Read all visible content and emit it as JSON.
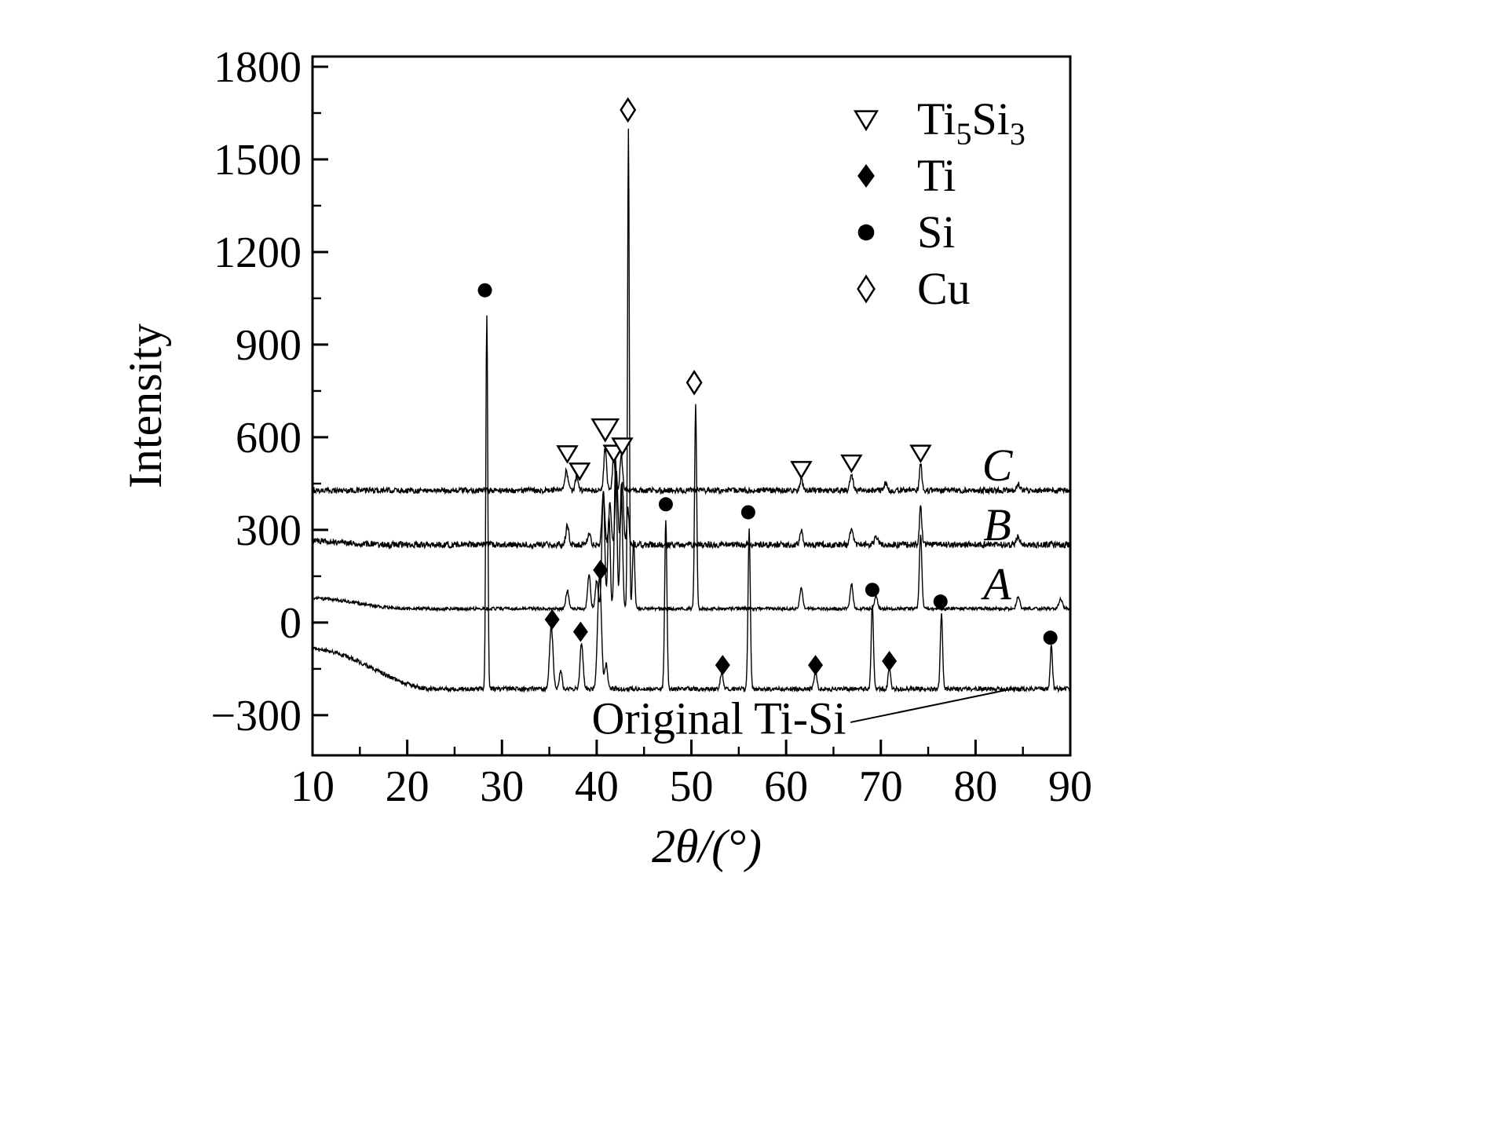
{
  "chart_data": {
    "type": "line",
    "title": "",
    "xlabel": "2θ/(°)",
    "ylabel": "Intensity",
    "xlim": [
      10,
      90
    ],
    "ylim": [
      -300,
      1800
    ],
    "x_ticks": [
      10,
      20,
      30,
      40,
      50,
      60,
      70,
      80,
      90
    ],
    "y_ticks": [
      -300,
      0,
      300,
      600,
      900,
      1200,
      1500,
      1800
    ],
    "x_minor_step": 5,
    "y_minor_step": 150,
    "grid": false,
    "line_color": "#000000",
    "background_color": "#ffffff",
    "legend": {
      "position": "top-right",
      "items": [
        {
          "symbol": "open-triangle-down",
          "phase": "Ti5Si3",
          "label": "Ti5Si3",
          "subscript_digits": true
        },
        {
          "symbol": "filled-diamond",
          "phase": "Ti",
          "label": "Ti",
          "subscript_digits": false
        },
        {
          "symbol": "filled-circle",
          "phase": "Si",
          "label": "Si",
          "subscript_digits": false
        },
        {
          "symbol": "open-diamond",
          "phase": "Cu",
          "label": "Cu",
          "subscript_digits": false
        }
      ]
    },
    "series": [
      {
        "name": "C",
        "baseline": 428,
        "noise": 9,
        "drift": {
          "amount": 0,
          "until": 20
        },
        "peaks": [
          [
            36.8,
            65,
            0.16
          ],
          [
            37.9,
            45,
            0.15
          ],
          [
            40.9,
            135,
            0.15
          ],
          [
            41.8,
            105,
            0.13
          ],
          [
            42.6,
            120,
            0.13
          ],
          [
            61.6,
            35,
            0.16
          ],
          [
            66.9,
            50,
            0.16
          ],
          [
            70.5,
            22,
            0.15
          ],
          [
            74.2,
            85,
            0.13
          ],
          [
            84.5,
            22,
            0.16
          ]
        ],
        "label": {
          "text": "C",
          "x": 82.3,
          "y": 460
        }
      },
      {
        "name": "B",
        "baseline": 252,
        "noise": 10,
        "drift": {
          "amount": 12,
          "until": 18
        },
        "peaks": [
          [
            36.9,
            60,
            0.16
          ],
          [
            39.2,
            40,
            0.15
          ],
          [
            40.7,
            170,
            0.15
          ],
          [
            41.4,
            140,
            0.13
          ],
          [
            42.1,
            230,
            0.14
          ],
          [
            42.7,
            200,
            0.13
          ],
          [
            43.3,
            120,
            0.12
          ],
          [
            61.6,
            45,
            0.16
          ],
          [
            66.9,
            55,
            0.16
          ],
          [
            69.5,
            30,
            0.15
          ],
          [
            74.2,
            120,
            0.13
          ],
          [
            84.5,
            28,
            0.16
          ]
        ],
        "label": {
          "text": "B",
          "x": 82.3,
          "y": 267
        }
      },
      {
        "name": "A",
        "baseline": 45,
        "noise": 5,
        "drift": {
          "amount": 33,
          "until": 20
        },
        "peaks": [
          [
            36.9,
            60,
            0.15
          ],
          [
            39.2,
            110,
            0.15
          ],
          [
            40.0,
            90,
            0.15
          ],
          [
            40.7,
            380,
            0.15
          ],
          [
            41.3,
            300,
            0.13
          ],
          [
            42.0,
            480,
            0.14
          ],
          [
            42.6,
            400,
            0.13
          ],
          [
            43.35,
            1550,
            0.09
          ],
          [
            43.9,
            220,
            0.12
          ],
          [
            50.45,
            660,
            0.11
          ],
          [
            61.6,
            70,
            0.15
          ],
          [
            66.9,
            80,
            0.15
          ],
          [
            69.5,
            40,
            0.15
          ],
          [
            74.2,
            240,
            0.13
          ],
          [
            84.5,
            40,
            0.16
          ],
          [
            89.0,
            30,
            0.2
          ]
        ],
        "label": {
          "text": "A",
          "x": 82.3,
          "y": 75
        }
      },
      {
        "name": "Original Ti-Si",
        "baseline": -215,
        "noise": 7,
        "drift": {
          "amount": 128,
          "until": 23
        },
        "peaks": [
          [
            28.4,
            1215,
            0.1
          ],
          [
            35.2,
            205,
            0.18
          ],
          [
            36.2,
            60,
            0.15
          ],
          [
            38.4,
            150,
            0.16
          ],
          [
            40.3,
            370,
            0.2
          ],
          [
            41.0,
            80,
            0.15
          ],
          [
            47.3,
            545,
            0.12
          ],
          [
            53.2,
            55,
            0.15
          ],
          [
            56.1,
            515,
            0.12
          ],
          [
            63.1,
            55,
            0.15
          ],
          [
            69.1,
            275,
            0.12
          ],
          [
            70.9,
            70,
            0.13
          ],
          [
            76.4,
            240,
            0.12
          ],
          [
            88.0,
            140,
            0.12
          ]
        ],
        "label": null
      }
    ],
    "markers": {
      "Ti5Si3": [
        [
          36.9,
          548
        ],
        [
          38.2,
          492
        ],
        [
          40.9,
          627,
          1.35
        ],
        [
          41.8,
          550
        ],
        [
          42.7,
          573
        ],
        [
          61.6,
          497
        ],
        [
          66.9,
          518
        ],
        [
          74.2,
          550
        ]
      ],
      "Ti": [
        [
          35.3,
          10
        ],
        [
          38.3,
          -30
        ],
        [
          40.4,
          170
        ],
        [
          53.3,
          -138
        ],
        [
          63.1,
          -138
        ],
        [
          70.9,
          -125
        ]
      ],
      "Si": [
        [
          28.2,
          1076
        ],
        [
          47.3,
          383
        ],
        [
          56.0,
          357
        ],
        [
          69.1,
          106
        ],
        [
          76.3,
          68
        ],
        [
          87.9,
          -49
        ]
      ],
      "Cu": [
        [
          43.3,
          1660
        ],
        [
          50.3,
          777
        ]
      ]
    },
    "annotation": {
      "text": "Original Ti-Si",
      "x": 52.9,
      "y": -360,
      "line": {
        "x1": 66.8,
        "y1": -323,
        "x2": 84.3,
        "y2": -212
      }
    }
  }
}
